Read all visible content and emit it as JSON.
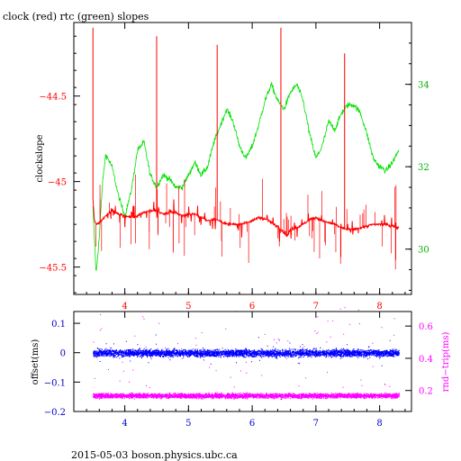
{
  "title": "clock (red) rtc (green) slopes",
  "footer": "2015-05-03 boson.physics.ubc.ca",
  "colors": {
    "clock": "#ff0000",
    "rtc": "#00e000",
    "offset": "#0000ff",
    "roundtrip": "#ff00ff",
    "axis_blue": "#0000cc"
  },
  "chart_data": [
    {
      "type": "line",
      "title": "clock (red) rtc (green) slopes",
      "ylabel": "clockslope",
      "xlim": [
        3.2,
        8.5
      ],
      "x_ticks": [
        4,
        5,
        6,
        7,
        8
      ],
      "x_tick_labels": [
        "4",
        "5",
        "6",
        "7",
        "8"
      ],
      "ylim_left": [
        -45.66,
        -44.07
      ],
      "y_ticks_left": [
        -44.5,
        -45,
        -45.5
      ],
      "y_tick_labels_left": [
        "−44.5",
        "−45",
        "−45.5"
      ],
      "ylim_right": [
        28.9,
        35.5
      ],
      "y_ticks_right": [
        30,
        32,
        34
      ],
      "y_tick_labels_right": [
        "30",
        "32",
        "34"
      ],
      "grid": false,
      "series": [
        {
          "name": "clock",
          "axis": "left",
          "x": [
            3.5,
            3.52,
            3.55,
            3.6,
            3.7,
            3.8,
            3.9,
            4.0,
            4.1,
            4.2,
            4.3,
            4.4,
            4.5,
            4.6,
            4.7,
            4.8,
            4.9,
            5.0,
            5.1,
            5.2,
            5.3,
            5.4,
            5.5,
            5.6,
            5.7,
            5.8,
            5.9,
            6.0,
            6.1,
            6.2,
            6.3,
            6.4,
            6.5,
            6.55,
            6.6,
            6.7,
            6.8,
            6.9,
            7.0,
            7.1,
            7.2,
            7.3,
            7.4,
            7.5,
            7.6,
            7.7,
            7.8,
            7.9,
            8.0,
            8.1,
            8.2,
            8.3
          ],
          "y": [
            -45.1,
            -45.22,
            -45.25,
            -45.24,
            -45.2,
            -45.17,
            -45.19,
            -45.2,
            -45.21,
            -45.2,
            -45.18,
            -45.17,
            -45.17,
            -45.19,
            -45.18,
            -45.18,
            -45.2,
            -45.19,
            -45.19,
            -45.21,
            -45.23,
            -45.22,
            -45.23,
            -45.25,
            -45.25,
            -45.25,
            -45.24,
            -45.23,
            -45.21,
            -45.22,
            -45.24,
            -45.26,
            -45.3,
            -45.32,
            -45.28,
            -45.27,
            -45.25,
            -45.22,
            -45.21,
            -45.23,
            -45.24,
            -45.25,
            -45.27,
            -45.28,
            -45.28,
            -45.27,
            -45.26,
            -45.25,
            -45.25,
            -45.25,
            -45.26,
            -45.27
          ]
        },
        {
          "name": "rtc",
          "axis": "right",
          "x": [
            3.5,
            3.55,
            3.6,
            3.65,
            3.7,
            3.8,
            3.9,
            4.0,
            4.1,
            4.2,
            4.3,
            4.4,
            4.5,
            4.6,
            4.7,
            4.8,
            4.9,
            5.0,
            5.1,
            5.2,
            5.3,
            5.4,
            5.5,
            5.6,
            5.7,
            5.8,
            5.9,
            6.0,
            6.1,
            6.2,
            6.3,
            6.4,
            6.5,
            6.6,
            6.7,
            6.8,
            6.9,
            7.0,
            7.1,
            7.2,
            7.3,
            7.4,
            7.5,
            7.6,
            7.7,
            7.8,
            7.9,
            8.0,
            8.1,
            8.2,
            8.3
          ],
          "y": [
            31.0,
            29.4,
            30.3,
            31.6,
            32.3,
            32.0,
            31.3,
            30.8,
            31.4,
            32.4,
            32.6,
            31.8,
            31.5,
            31.8,
            31.7,
            31.5,
            31.5,
            31.8,
            32.1,
            31.8,
            32.0,
            32.6,
            33.0,
            33.4,
            33.1,
            32.5,
            32.2,
            32.5,
            33.0,
            33.6,
            34.0,
            33.6,
            33.4,
            33.8,
            34.0,
            33.6,
            32.8,
            32.2,
            32.5,
            33.1,
            32.9,
            33.3,
            33.5,
            33.5,
            33.3,
            32.8,
            32.2,
            32.0,
            31.9,
            32.1,
            32.4
          ]
        }
      ],
      "spikes": {
        "x": [
          3.5,
          4.5,
          5.45,
          6.45,
          7.45
        ],
        "peak": [
          -44.1,
          -44.15,
          -44.2,
          -44.1,
          -44.25
        ]
      }
    },
    {
      "type": "scatter",
      "ylabel_left": "offset(ms)",
      "ylabel_right": "rnd−trip(ms)",
      "xlim": [
        3.2,
        8.5
      ],
      "x_ticks": [
        4,
        5,
        6,
        7,
        8
      ],
      "x_tick_labels": [
        "4",
        "5",
        "6",
        "7",
        "8"
      ],
      "ylim_left": [
        -0.2,
        0.14
      ],
      "y_ticks_left": [
        0.1,
        0,
        -0.1,
        -0.2
      ],
      "y_tick_labels_left": [
        "0.1",
        "0",
        "−0.1",
        "−0.2"
      ],
      "ylim_right": [
        0.07,
        0.69
      ],
      "y_ticks_right": [
        0.6,
        0.4,
        0.2
      ],
      "y_tick_labels_right": [
        "0.6",
        "0.4",
        "0.2"
      ],
      "grid": false,
      "series": [
        {
          "name": "offset",
          "axis": "left",
          "x_range": [
            3.5,
            8.3
          ],
          "center": 0.0,
          "spread": 0.02
        },
        {
          "name": "rnd-trip",
          "axis": "right",
          "x_range": [
            3.5,
            8.3
          ],
          "center": 0.17,
          "spread": 0.025
        }
      ]
    }
  ]
}
